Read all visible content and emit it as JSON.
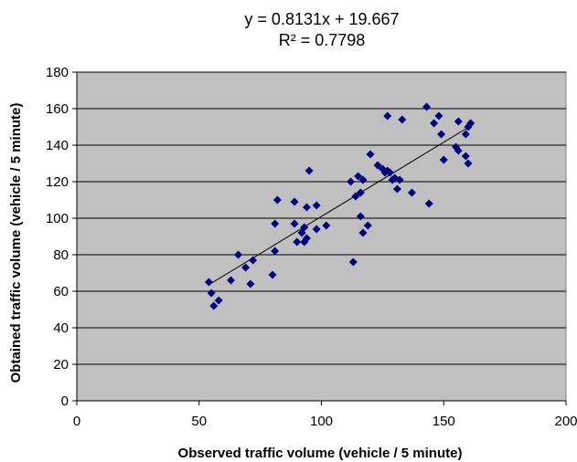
{
  "chart_data": {
    "type": "scatter",
    "equation": "y = 0.8131x + 19.667",
    "r_squared": "R² = 0.7798",
    "xlabel": "Observed traffic volume (vehicle / 5 minute)",
    "ylabel": "Obtained traffic volume (vehicle / 5 minute)",
    "xlim": [
      0,
      200
    ],
    "ylim": [
      0,
      180
    ],
    "xticks": [
      0,
      50,
      100,
      150,
      200
    ],
    "yticks": [
      0,
      20,
      40,
      60,
      80,
      100,
      120,
      140,
      160,
      180
    ],
    "xtick_labels": [
      "0",
      "50",
      "100",
      "150",
      "200"
    ],
    "ytick_labels": [
      "0",
      "20",
      "40",
      "60",
      "80",
      "100",
      "120",
      "140",
      "160",
      "180"
    ],
    "grid": "horizontal",
    "trendline": {
      "slope": 0.8131,
      "intercept": 19.667,
      "x_range": [
        54,
        161
      ]
    },
    "colors": {
      "plot_bg": "#c0c0c0",
      "marker": "#000080",
      "grid": "#000000",
      "trendline": "#000000"
    },
    "series": [
      {
        "marker": "diamond",
        "points": [
          [
            54,
            65
          ],
          [
            55,
            59
          ],
          [
            56,
            52
          ],
          [
            58,
            55
          ],
          [
            63,
            66
          ],
          [
            66,
            80
          ],
          [
            69,
            73
          ],
          [
            71,
            64
          ],
          [
            72,
            77
          ],
          [
            80,
            69
          ],
          [
            81,
            97
          ],
          [
            81,
            82
          ],
          [
            82,
            110
          ],
          [
            89,
            97
          ],
          [
            89,
            109
          ],
          [
            90,
            87
          ],
          [
            92,
            92
          ],
          [
            93,
            95
          ],
          [
            93,
            87
          ],
          [
            94,
            89
          ],
          [
            94,
            106
          ],
          [
            95,
            126
          ],
          [
            98,
            94
          ],
          [
            98,
            107
          ],
          [
            102,
            96
          ],
          [
            112,
            120
          ],
          [
            113,
            76
          ],
          [
            114,
            112
          ],
          [
            115,
            123
          ],
          [
            116,
            101
          ],
          [
            116,
            114
          ],
          [
            117,
            92
          ],
          [
            117,
            121
          ],
          [
            119,
            96
          ],
          [
            120,
            135
          ],
          [
            123,
            129
          ],
          [
            125,
            127
          ],
          [
            126,
            125
          ],
          [
            127,
            126
          ],
          [
            127,
            156
          ],
          [
            128,
            125
          ],
          [
            129,
            121
          ],
          [
            130,
            122
          ],
          [
            131,
            116
          ],
          [
            132,
            121
          ],
          [
            133,
            154
          ],
          [
            137,
            114
          ],
          [
            143,
            161
          ],
          [
            144,
            108
          ],
          [
            146,
            152
          ],
          [
            148,
            156
          ],
          [
            149,
            146
          ],
          [
            150,
            132
          ],
          [
            155,
            139
          ],
          [
            156,
            137
          ],
          [
            156,
            153
          ],
          [
            159,
            146
          ],
          [
            159,
            134
          ],
          [
            160,
            130
          ],
          [
            160,
            150
          ],
          [
            161,
            152
          ]
        ]
      }
    ]
  }
}
